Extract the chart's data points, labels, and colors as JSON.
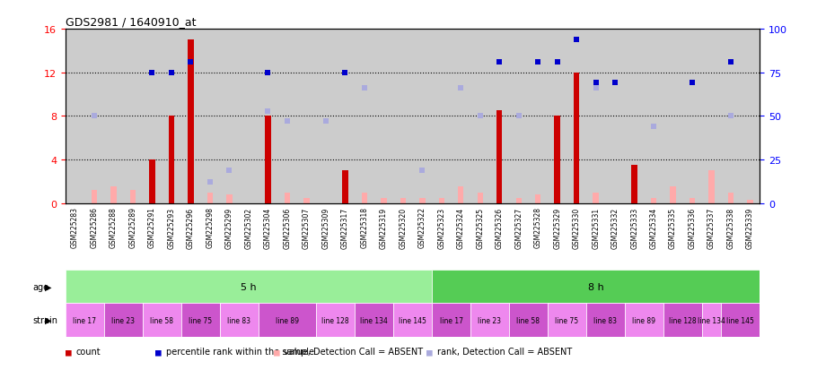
{
  "title": "GDS2981 / 1640910_at",
  "samples": [
    "GSM225283",
    "GSM225286",
    "GSM225288",
    "GSM225289",
    "GSM225291",
    "GSM225293",
    "GSM225296",
    "GSM225298",
    "GSM225299",
    "GSM225302",
    "GSM225304",
    "GSM225306",
    "GSM225307",
    "GSM225309",
    "GSM225317",
    "GSM225318",
    "GSM225319",
    "GSM225320",
    "GSM225322",
    "GSM225323",
    "GSM225324",
    "GSM225325",
    "GSM225326",
    "GSM225327",
    "GSM225328",
    "GSM225329",
    "GSM225330",
    "GSM225331",
    "GSM225332",
    "GSM225333",
    "GSM225334",
    "GSM225335",
    "GSM225336",
    "GSM225337",
    "GSM225338",
    "GSM225339"
  ],
  "count": [
    0,
    0,
    0,
    0,
    4,
    8,
    15,
    0,
    0,
    0,
    8,
    0,
    0,
    0,
    3,
    0,
    0,
    0,
    0,
    0,
    0,
    0,
    8.5,
    0,
    0,
    8,
    12,
    0,
    0,
    3.5,
    0,
    0,
    0,
    0,
    0,
    0
  ],
  "percentile_rank": [
    null,
    null,
    null,
    null,
    75,
    75,
    81,
    null,
    null,
    null,
    75,
    null,
    null,
    null,
    75,
    null,
    null,
    null,
    null,
    null,
    null,
    null,
    81,
    null,
    81,
    81,
    94,
    69,
    69,
    null,
    null,
    null,
    69,
    null,
    81,
    null
  ],
  "value_absent": [
    0,
    1.2,
    1.5,
    1.2,
    0,
    0,
    0,
    1.0,
    0.8,
    0,
    0,
    1.0,
    0.5,
    0,
    0,
    1.0,
    0.5,
    0.5,
    0.5,
    0.5,
    1.5,
    1.0,
    0,
    0.5,
    0.8,
    0,
    0,
    1.0,
    0,
    2.0,
    0.5,
    1.5,
    0.5,
    3.0,
    1.0,
    0.3
  ],
  "rank_absent": [
    null,
    50,
    null,
    null,
    null,
    null,
    null,
    12,
    19,
    null,
    53,
    47,
    null,
    47,
    null,
    66,
    null,
    null,
    19,
    null,
    66,
    50,
    null,
    50,
    null,
    null,
    null,
    66,
    null,
    null,
    44,
    null,
    null,
    null,
    50,
    null
  ],
  "ylim_left": [
    0,
    16
  ],
  "ylim_right": [
    0,
    100
  ],
  "yticks_left": [
    0,
    4,
    8,
    12,
    16
  ],
  "yticks_right": [
    0,
    25,
    50,
    75,
    100
  ],
  "color_count": "#cc0000",
  "color_rank": "#0000cc",
  "color_value_absent": "#ffaaaa",
  "color_rank_absent": "#aaaadd",
  "color_age_5h": "#99ee99",
  "color_age_8h": "#55cc55",
  "color_strain_pink1": "#ee88ee",
  "color_strain_pink2": "#cc55cc",
  "bg_color": "#cccccc",
  "strain_bounds_start": [
    0,
    2,
    4,
    6,
    8,
    10,
    13,
    15,
    17,
    19,
    21,
    23,
    25,
    27,
    29,
    31,
    33,
    34
  ],
  "strain_bounds_end": [
    2,
    4,
    6,
    8,
    10,
    13,
    15,
    17,
    19,
    21,
    23,
    25,
    27,
    29,
    31,
    33,
    34,
    36
  ],
  "strain_labels": [
    "line 17",
    "line 23",
    "line 58",
    "line 75",
    "line 83",
    "line 89",
    "line 128",
    "line 134",
    "line 145",
    "line 17",
    "line 23",
    "line 58",
    "line 75",
    "line 83",
    "line 89",
    "line 128",
    "line 134",
    "line 145"
  ]
}
